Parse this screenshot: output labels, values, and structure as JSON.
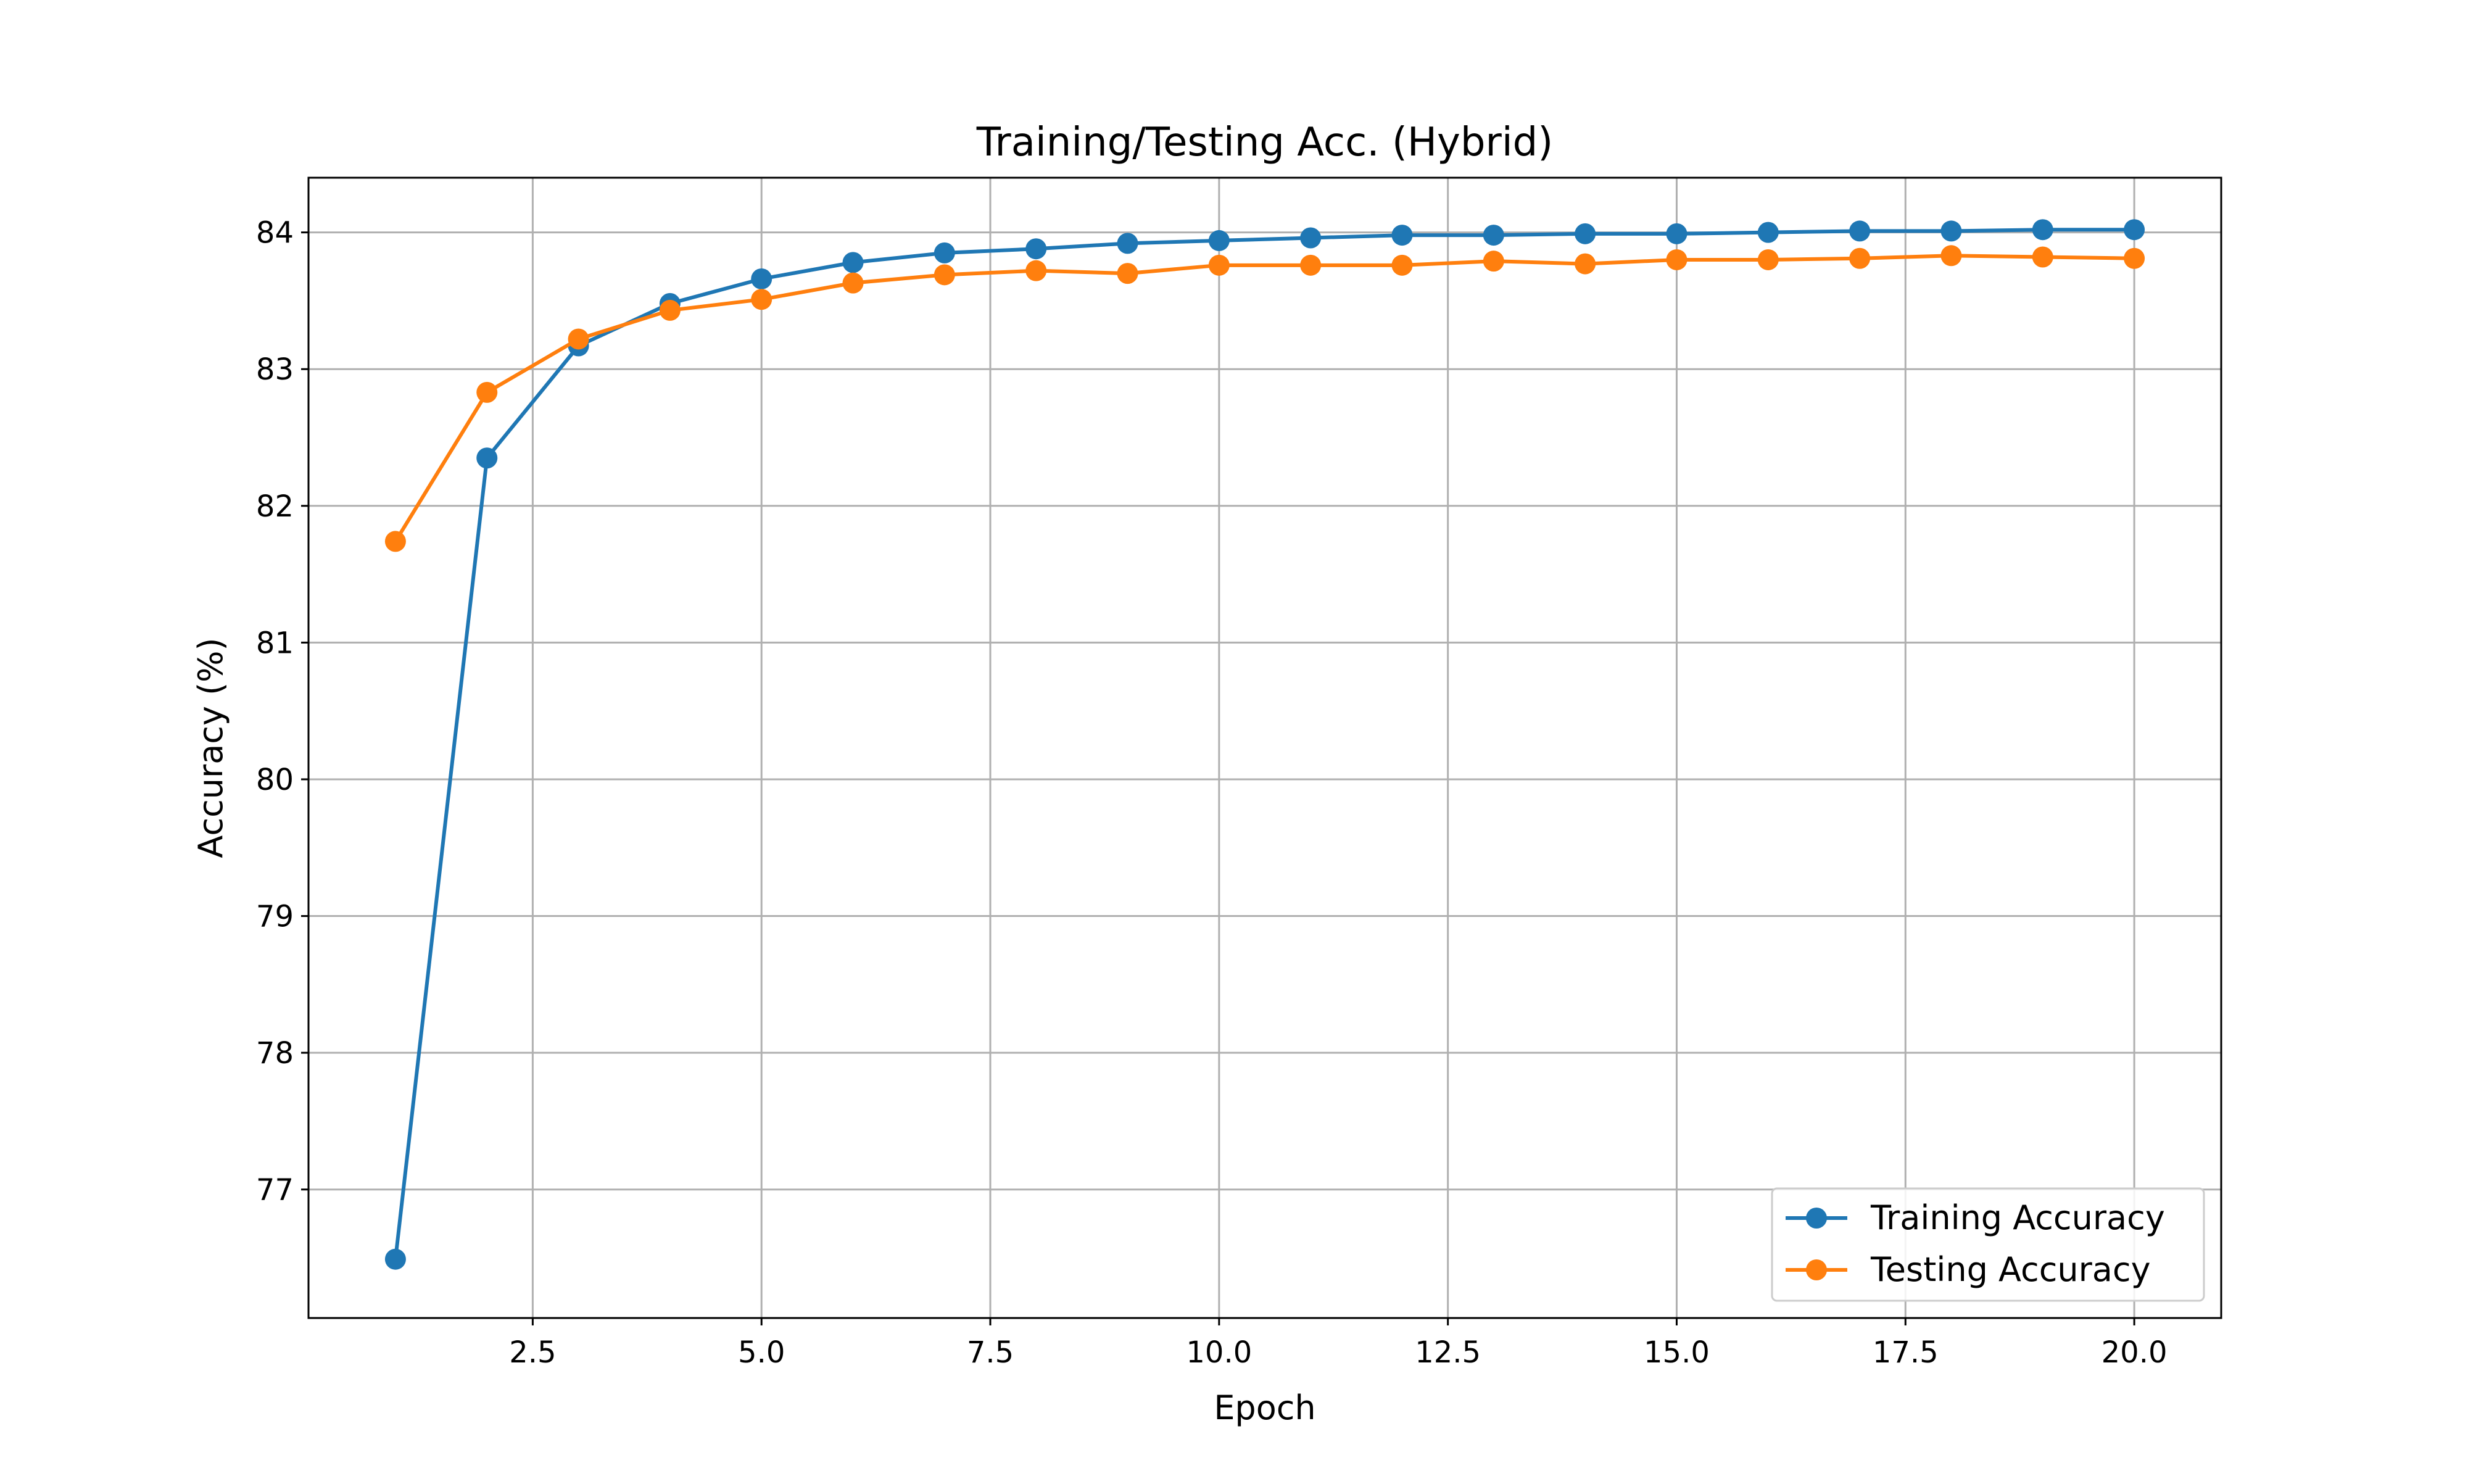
{
  "chart_data": {
    "type": "line",
    "title": "Training/Testing Acc. (Hybrid)",
    "xlabel": "Epoch",
    "ylabel": "Accuracy (%)",
    "xlim": [
      0.05,
      20.95
    ],
    "ylim": [
      76.06,
      84.4
    ],
    "xticks": [
      2.5,
      5.0,
      7.5,
      10.0,
      12.5,
      15.0,
      17.5,
      20.0
    ],
    "xtick_labels": [
      "2.5",
      "5.0",
      "7.5",
      "10.0",
      "12.5",
      "15.0",
      "17.5",
      "20.0"
    ],
    "yticks": [
      77,
      78,
      79,
      80,
      81,
      82,
      83,
      84
    ],
    "ytick_labels": [
      "77",
      "78",
      "79",
      "80",
      "81",
      "82",
      "83",
      "84"
    ],
    "grid": true,
    "legend_position": "lower-right",
    "x": [
      1,
      2,
      3,
      4,
      5,
      6,
      7,
      8,
      9,
      10,
      11,
      12,
      13,
      14,
      15,
      16,
      17,
      18,
      19,
      20
    ],
    "series": [
      {
        "name": "Training Accuracy",
        "color": "#1f77b4",
        "values": [
          76.49,
          82.35,
          83.17,
          83.48,
          83.66,
          83.78,
          83.85,
          83.88,
          83.92,
          83.94,
          83.96,
          83.98,
          83.98,
          83.99,
          83.99,
          84.0,
          84.01,
          84.01,
          84.02,
          84.02
        ]
      },
      {
        "name": "Testing Accuracy",
        "color": "#ff7f0e",
        "values": [
          81.74,
          82.83,
          83.22,
          83.43,
          83.51,
          83.63,
          83.69,
          83.72,
          83.7,
          83.76,
          83.76,
          83.76,
          83.79,
          83.77,
          83.8,
          83.8,
          83.81,
          83.83,
          83.82,
          83.81
        ]
      }
    ]
  }
}
